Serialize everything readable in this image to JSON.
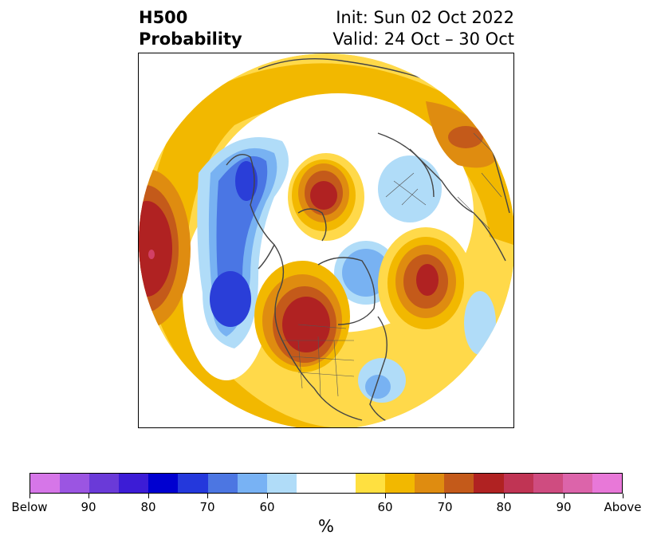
{
  "title": {
    "left_line1": "H500",
    "left_line2": "Probability",
    "right_line1": "Init: Sun 02 Oct 2022",
    "right_line2": "Valid: 24 Oct – 30 Oct"
  },
  "map": {
    "projection": "north polar stereographic",
    "colors": {
      "below_60": "#b0dcf8",
      "below_70": "#78b2f2",
      "below_80": "#4a76e4",
      "below_90": "#2a3ed8",
      "above_50": "#ffd94a",
      "above_60": "#f2b800",
      "above_70": "#df8c10",
      "above_80": "#c45a1a",
      "above_90": "#b02222",
      "above_max": "#d24066",
      "coastline": "#444444"
    }
  },
  "colorbar": {
    "segments": [
      "#d676e8",
      "#9b55e2",
      "#6a3ad8",
      "#3c1cd6",
      "#0000d0",
      "#2438dc",
      "#4c76e2",
      "#78b2f4",
      "#b0dcf8",
      "#ffffff",
      "#ffffff",
      "#ffe040",
      "#f2b800",
      "#df8c10",
      "#c45a1a",
      "#b02222",
      "#c03454",
      "#cf4c80",
      "#dc64aa",
      "#e878d8"
    ],
    "labels": [
      "Below",
      "90",
      "80",
      "70",
      "60",
      "60",
      "70",
      "80",
      "90",
      "Above"
    ],
    "unit": "%"
  }
}
